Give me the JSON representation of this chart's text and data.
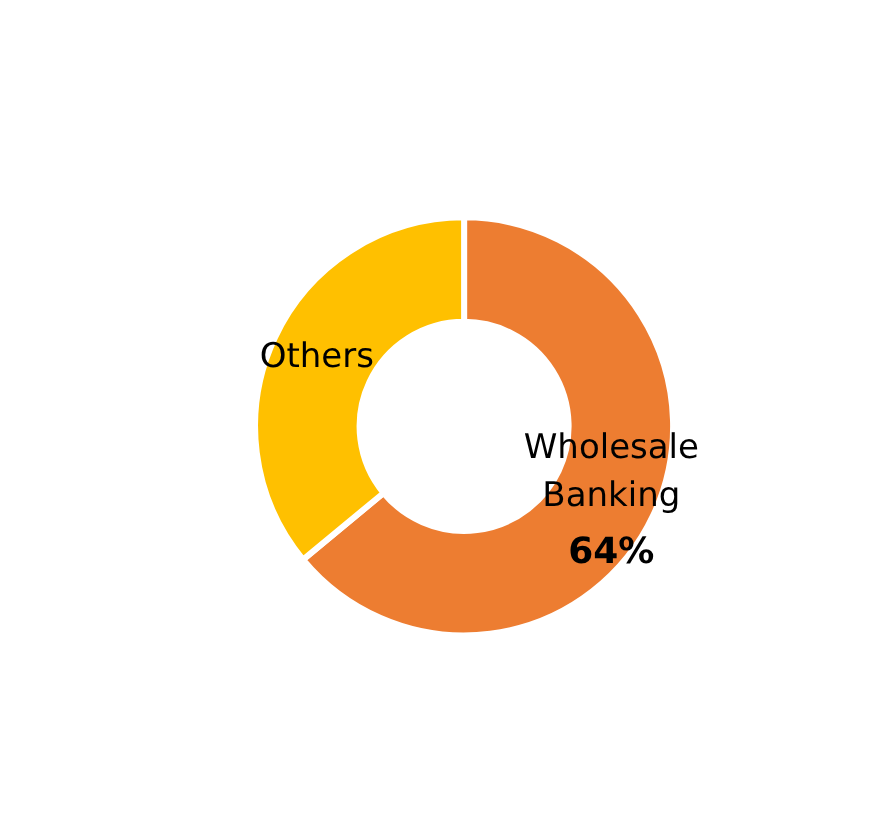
{
  "chart_data": {
    "type": "donut",
    "categories": [
      "Wholesale Banking",
      "Others"
    ],
    "values": [
      64,
      36
    ],
    "colors": [
      "#ed7d31",
      "#ffc000"
    ],
    "value_labels": [
      "64%",
      null
    ],
    "legend": false
  }
}
